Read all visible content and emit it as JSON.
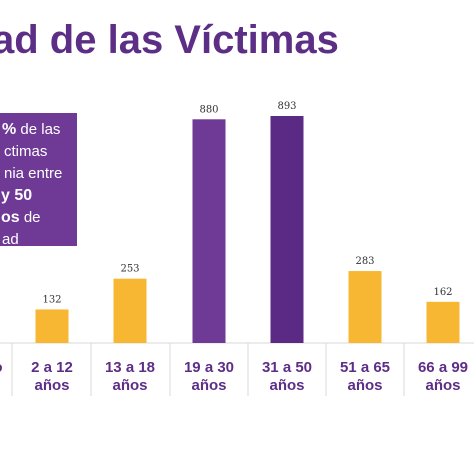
{
  "title": "ad de las Víctimas",
  "callout": {
    "line1_bold": "%",
    "line1_rest": " de las",
    "line2": "ctimas",
    "line3": "nia entre",
    "line4_bold": "y 50",
    "line5_bold": "os",
    "line5_rest": " de",
    "line6": "ad"
  },
  "colors": {
    "purple": "#6f3996",
    "purple_dark": "#5b2a84",
    "orange": "#f7b733",
    "label": "#5d2e86"
  },
  "chart_data": {
    "type": "bar",
    "categories": [
      {
        "line1": "o",
        "line2": ""
      },
      {
        "line1": "2 a 12",
        "line2": "años"
      },
      {
        "line1": "13 a 18",
        "line2": "años"
      },
      {
        "line1": "19 a 30",
        "line2": "años"
      },
      {
        "line1": "31 a 50",
        "line2": "años"
      },
      {
        "line1": "51 a 65",
        "line2": "años"
      },
      {
        "line1": "66 a 99",
        "line2": "años"
      }
    ],
    "values": [
      null,
      132,
      253,
      880,
      893,
      283,
      162
    ],
    "value_labels": [
      "",
      "132",
      "253",
      "880",
      "893",
      "283",
      "162"
    ],
    "highlight": [
      "none",
      "orange",
      "orange",
      "purple",
      "purple_dark",
      "orange",
      "orange"
    ]
  }
}
